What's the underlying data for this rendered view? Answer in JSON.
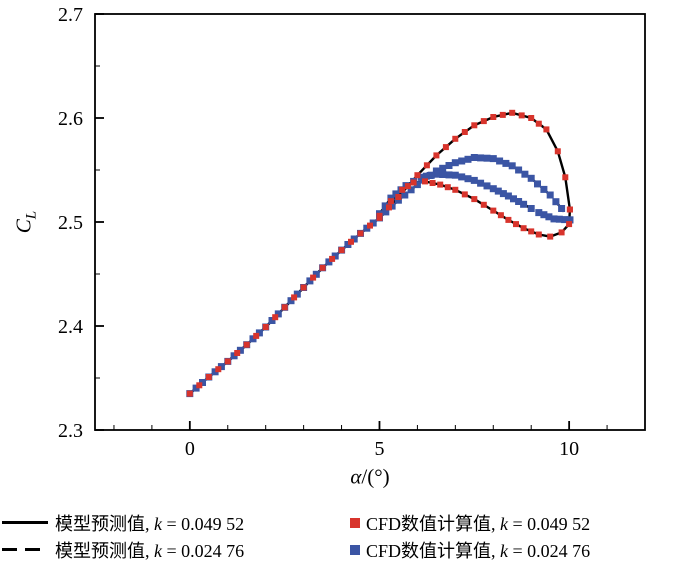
{
  "colors": {
    "red": "#d8342c",
    "blue": "#3b55a4",
    "axis": "#000000"
  },
  "axes": {
    "y_label": {
      "main": "C",
      "sub": "L"
    },
    "x_label": {
      "var": "α",
      "rest": "/(°)"
    }
  },
  "legend": {
    "rows": [
      {
        "line_style": "solid",
        "model": {
          "prefix": "模型预测值, ",
          "var": "k",
          "rest": " = 0.049 52"
        },
        "marker_color": "#d8342c",
        "cfd": {
          "prefix": "CFD数值计算值, ",
          "var": "k",
          "rest": " = 0.049 52"
        }
      },
      {
        "line_style": "dashed",
        "model": {
          "prefix": "模型预测值, ",
          "var": "k",
          "rest": " = 0.024 76"
        },
        "marker_color": "#3b55a4",
        "cfd": {
          "prefix": "CFD数值计算值, ",
          "var": "k",
          "rest": " = 0.024 76"
        }
      }
    ]
  },
  "chart_data": {
    "type": "line",
    "title": "",
    "xlabel": "α/(°)",
    "ylabel": "C_L",
    "xlim": [
      -2.5,
      12
    ],
    "ylim": [
      2.3,
      2.7
    ],
    "x_ticks": [
      0,
      5,
      10
    ],
    "x_tick_labels": [
      "0",
      "5",
      "10"
    ],
    "y_ticks": [
      2.3,
      2.4,
      2.5,
      2.6,
      2.7
    ],
    "y_tick_labels": [
      "2.3",
      "2.4",
      "2.5",
      "2.6",
      "2.7"
    ],
    "x_minor_step": 1,
    "y_minor_step": 0.05,
    "grid": false,
    "legend_position": "below",
    "series": [
      {
        "id": "model-k-0-02476",
        "name": "模型预测值, k = 0.024 76",
        "type": "line",
        "color": "#000000",
        "dash": [
          13,
          8
        ],
        "branches": [
          [
            [
              0,
              2.335
            ],
            [
              0.5,
              2.351
            ],
            [
              1,
              2.366
            ],
            [
              1.5,
              2.382
            ],
            [
              2,
              2.399
            ],
            [
              2.5,
              2.418
            ],
            [
              3,
              2.437
            ],
            [
              3.5,
              2.456
            ],
            [
              4,
              2.473
            ],
            [
              4.5,
              2.489
            ],
            [
              5,
              2.504
            ]
          ],
          [
            [
              5,
              2.504
            ],
            [
              5.5,
              2.521
            ],
            [
              6,
              2.536
            ],
            [
              6.5,
              2.549
            ],
            [
              7,
              2.557
            ],
            [
              7.5,
              2.562
            ],
            [
              8,
              2.561
            ],
            [
              8.5,
              2.554
            ],
            [
              9,
              2.542
            ],
            [
              9.5,
              2.526
            ],
            [
              9.8,
              2.513
            ],
            [
              10.02,
              2.502
            ]
          ],
          [
            [
              10.02,
              2.502
            ],
            [
              9.6,
              2.503
            ],
            [
              9.2,
              2.509
            ],
            [
              8.8,
              2.517
            ],
            [
              8.4,
              2.525
            ],
            [
              8,
              2.532
            ],
            [
              7.5,
              2.54
            ],
            [
              7,
              2.545
            ],
            [
              6.5,
              2.546
            ],
            [
              6.1,
              2.543
            ],
            [
              5.7,
              2.535
            ],
            [
              5.3,
              2.523
            ],
            [
              5,
              2.508
            ]
          ]
        ]
      },
      {
        "id": "model-k-0-04952",
        "name": "模型预测值, k = 0.049 52",
        "type": "line",
        "color": "#000000",
        "dash": null,
        "branches": [
          [
            [
              0,
              2.335
            ],
            [
              0.5,
              2.351
            ],
            [
              1,
              2.366
            ],
            [
              1.5,
              2.382
            ],
            [
              2,
              2.399
            ],
            [
              2.5,
              2.418
            ],
            [
              3,
              2.437
            ],
            [
              3.5,
              2.456
            ],
            [
              4,
              2.473
            ],
            [
              4.5,
              2.489
            ],
            [
              5,
              2.504
            ]
          ],
          [
            [
              5,
              2.504
            ],
            [
              5.5,
              2.524
            ],
            [
              6,
              2.545
            ],
            [
              6.5,
              2.564
            ],
            [
              7,
              2.58
            ],
            [
              7.5,
              2.593
            ],
            [
              8,
              2.601
            ],
            [
              8.5,
              2.605
            ],
            [
              9,
              2.6
            ],
            [
              9.4,
              2.589
            ],
            [
              9.7,
              2.568
            ],
            [
              9.9,
              2.543
            ],
            [
              10.02,
              2.512
            ]
          ],
          [
            [
              10.02,
              2.512
            ],
            [
              10,
              2.498
            ],
            [
              9.8,
              2.49
            ],
            [
              9.5,
              2.486
            ],
            [
              9.2,
              2.488
            ],
            [
              8.8,
              2.494
            ],
            [
              8.4,
              2.502
            ],
            [
              8,
              2.511
            ],
            [
              7.5,
              2.522
            ],
            [
              7,
              2.531
            ],
            [
              6.6,
              2.536
            ],
            [
              6.2,
              2.539
            ],
            [
              5.9,
              2.538
            ],
            [
              5.6,
              2.531
            ],
            [
              5.3,
              2.52
            ],
            [
              5,
              2.506
            ]
          ]
        ]
      },
      {
        "id": "cfd-k-0-02476",
        "name": "CFD数值计算值, k = 0.024 76",
        "type": "scatter",
        "color": "#3b55a4",
        "marker": "square",
        "size": 7,
        "step": 0.16,
        "branches": [
          [
            [
              0,
              2.335
            ],
            [
              0.5,
              2.351
            ],
            [
              1,
              2.366
            ],
            [
              1.5,
              2.382
            ],
            [
              2,
              2.399
            ],
            [
              2.5,
              2.418
            ],
            [
              3,
              2.437
            ],
            [
              3.5,
              2.456
            ],
            [
              4,
              2.473
            ],
            [
              4.5,
              2.489
            ],
            [
              5,
              2.504
            ]
          ],
          [
            [
              5,
              2.504
            ],
            [
              5.5,
              2.521
            ],
            [
              6,
              2.536
            ],
            [
              6.5,
              2.549
            ],
            [
              7,
              2.557
            ],
            [
              7.5,
              2.562
            ],
            [
              8,
              2.561
            ],
            [
              8.5,
              2.554
            ],
            [
              9,
              2.542
            ],
            [
              9.5,
              2.526
            ],
            [
              9.8,
              2.513
            ],
            [
              10.02,
              2.502
            ]
          ],
          [
            [
              10.02,
              2.502
            ],
            [
              9.6,
              2.503
            ],
            [
              9.2,
              2.509
            ],
            [
              8.8,
              2.517
            ],
            [
              8.4,
              2.525
            ],
            [
              8,
              2.532
            ],
            [
              7.5,
              2.54
            ],
            [
              7,
              2.545
            ],
            [
              6.5,
              2.546
            ],
            [
              6.1,
              2.543
            ],
            [
              5.7,
              2.535
            ],
            [
              5.3,
              2.523
            ],
            [
              5,
              2.508
            ]
          ]
        ]
      },
      {
        "id": "cfd-k-0-04952",
        "name": "CFD数值计算值, k = 0.049 52",
        "type": "scatter",
        "color": "#d8342c",
        "marker": "square",
        "size": 6,
        "step": 0.22,
        "branches": [
          [
            [
              0,
              2.335
            ],
            [
              0.5,
              2.351
            ],
            [
              1,
              2.366
            ],
            [
              1.5,
              2.382
            ],
            [
              2,
              2.399
            ],
            [
              2.5,
              2.418
            ],
            [
              3,
              2.437
            ],
            [
              3.5,
              2.456
            ],
            [
              4,
              2.473
            ],
            [
              4.5,
              2.489
            ],
            [
              5,
              2.504
            ]
          ],
          [
            [
              5,
              2.504
            ],
            [
              5.5,
              2.524
            ],
            [
              6,
              2.545
            ],
            [
              6.5,
              2.564
            ],
            [
              7,
              2.58
            ],
            [
              7.5,
              2.593
            ],
            [
              8,
              2.601
            ],
            [
              8.5,
              2.605
            ],
            [
              9,
              2.6
            ],
            [
              9.4,
              2.589
            ],
            [
              9.7,
              2.568
            ],
            [
              9.9,
              2.543
            ],
            [
              10.02,
              2.512
            ]
          ],
          [
            [
              10.02,
              2.512
            ],
            [
              10,
              2.498
            ],
            [
              9.8,
              2.49
            ],
            [
              9.5,
              2.486
            ],
            [
              9.2,
              2.488
            ],
            [
              8.8,
              2.494
            ],
            [
              8.4,
              2.502
            ],
            [
              8,
              2.511
            ],
            [
              7.5,
              2.522
            ],
            [
              7,
              2.531
            ],
            [
              6.6,
              2.536
            ],
            [
              6.2,
              2.539
            ],
            [
              5.9,
              2.538
            ],
            [
              5.6,
              2.531
            ],
            [
              5.3,
              2.52
            ],
            [
              5,
              2.506
            ]
          ]
        ]
      }
    ]
  }
}
